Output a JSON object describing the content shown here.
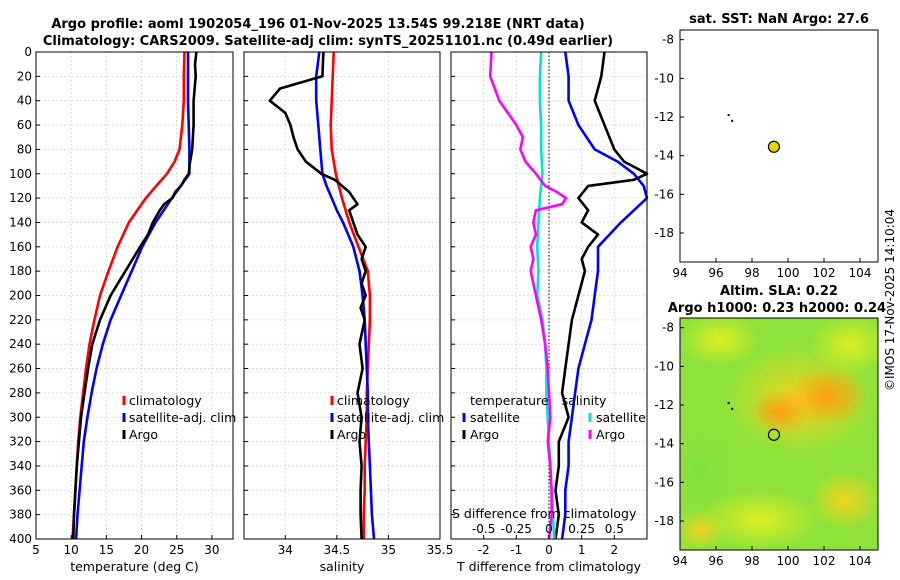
{
  "header": {
    "line1": "Argo profile: aoml 1902054_196 01-Nov-2025 13.54S 99.218E (NRT data)",
    "line2": "Climatology: CARS2009. Satellite-adj clim: synTS_20251101.nc (0.49d earlier)"
  },
  "footer": {
    "stamp": "©IMOS 17-Nov-2025 14:10:04"
  },
  "colors": {
    "climatology": "#ff0000",
    "satellite": "#0000ff",
    "argo": "#000000",
    "t_sat_diff": "#00e0e0",
    "s_argo_diff": "#ff00ff"
  },
  "chart_data": [
    {
      "id": "temperature",
      "type": "line",
      "xlabel": "temperature (deg C)",
      "ylabel": "",
      "xlim": [
        5,
        33
      ],
      "ylim": [
        0,
        400
      ],
      "y_reversed": true,
      "xticks": [
        5,
        10,
        15,
        20,
        25,
        30
      ],
      "yticks": [
        0,
        20,
        40,
        60,
        80,
        100,
        120,
        140,
        160,
        180,
        200,
        220,
        240,
        260,
        280,
        300,
        320,
        340,
        360,
        380,
        400
      ],
      "grid": true,
      "legend": [
        "climatology",
        "satellite-adj. clim",
        "Argo"
      ],
      "series": [
        {
          "name": "climatology",
          "color": "#ff0000",
          "depth": [
            0,
            20,
            40,
            60,
            80,
            90,
            100,
            110,
            120,
            130,
            140,
            160,
            180,
            200,
            220,
            240,
            260,
            280,
            300,
            320,
            340,
            360,
            380,
            400
          ],
          "values": [
            26.1,
            26.0,
            26.0,
            25.8,
            25.4,
            24.7,
            23.6,
            22.1,
            20.6,
            19.4,
            18.2,
            16.6,
            15.3,
            14.1,
            13.3,
            12.6,
            12.1,
            11.7,
            11.3,
            11.0,
            10.8,
            10.6,
            10.4,
            10.2
          ]
        },
        {
          "name": "satellite-adj. clim",
          "color": "#0000ff",
          "depth": [
            0,
            20,
            40,
            60,
            80,
            100,
            110,
            120,
            140,
            160,
            180,
            200,
            220,
            240,
            260,
            280,
            300,
            320,
            340,
            360,
            380,
            400
          ],
          "values": [
            26.6,
            26.6,
            26.6,
            26.7,
            26.8,
            26.8,
            25.6,
            24.3,
            22.0,
            20.1,
            18.6,
            17.1,
            15.6,
            14.5,
            13.6,
            12.9,
            12.3,
            11.8,
            11.5,
            11.2,
            10.9,
            10.7
          ]
        },
        {
          "name": "Argo",
          "color": "#000000",
          "depth": [
            0,
            10,
            20,
            40,
            60,
            80,
            90,
            100,
            105,
            110,
            115,
            120,
            125,
            130,
            140,
            150,
            160,
            180,
            200,
            220,
            240,
            260,
            280,
            300,
            320,
            340,
            360,
            380,
            400
          ],
          "values": [
            27.8,
            27.6,
            27.7,
            27.4,
            27.4,
            27.2,
            26.9,
            26.7,
            26.1,
            25.6,
            24.8,
            24.4,
            23.2,
            22.6,
            21.6,
            20.9,
            19.8,
            17.7,
            15.6,
            14.1,
            13.0,
            12.4,
            11.9,
            11.4,
            11.1,
            10.8,
            10.6,
            10.4,
            10.3
          ]
        }
      ]
    },
    {
      "id": "salinity",
      "type": "line",
      "xlabel": "salinity",
      "xlim": [
        33.6,
        35.5
      ],
      "ylim": [
        0,
        400
      ],
      "y_reversed": true,
      "xticks": [
        34,
        34.5,
        35,
        35.5
      ],
      "grid": true,
      "legend": [
        "climatology",
        "satellite-adj. clim",
        "Argo"
      ],
      "series": [
        {
          "name": "climatology",
          "color": "#ff0000",
          "depth": [
            0,
            20,
            40,
            60,
            80,
            100,
            120,
            140,
            160,
            180,
            200,
            220,
            240,
            260,
            280,
            300,
            320,
            340,
            360,
            380,
            400
          ],
          "values": [
            34.47,
            34.46,
            34.45,
            34.44,
            34.45,
            34.49,
            34.55,
            34.62,
            34.71,
            34.8,
            34.82,
            34.82,
            34.81,
            34.8,
            34.79,
            34.79,
            34.78,
            34.77,
            34.77,
            34.76,
            34.76
          ]
        },
        {
          "name": "satellite-adj. clim",
          "color": "#0000ff",
          "depth": [
            0,
            20,
            40,
            60,
            80,
            100,
            110,
            120,
            130,
            140,
            150,
            160,
            180,
            200,
            220,
            240,
            260,
            280,
            300,
            320,
            340,
            360,
            380,
            400
          ],
          "values": [
            34.33,
            34.3,
            34.3,
            34.32,
            34.34,
            34.36,
            34.4,
            34.45,
            34.5,
            34.56,
            34.61,
            34.66,
            34.72,
            34.75,
            34.77,
            34.78,
            34.79,
            34.8,
            34.8,
            34.81,
            34.82,
            34.83,
            34.84,
            34.86
          ]
        },
        {
          "name": "Argo",
          "color": "#000000",
          "depth": [
            0,
            20,
            30,
            40,
            50,
            60,
            70,
            80,
            90,
            100,
            105,
            110,
            115,
            120,
            125,
            130,
            140,
            150,
            160,
            170,
            180,
            190,
            200,
            210,
            220,
            240,
            260,
            280,
            300,
            320,
            340,
            360,
            380,
            400
          ],
          "values": [
            34.37,
            34.36,
            33.95,
            33.85,
            34.0,
            34.05,
            34.08,
            34.12,
            34.2,
            34.35,
            34.48,
            34.55,
            34.62,
            34.66,
            34.7,
            34.62,
            34.66,
            34.7,
            34.78,
            34.74,
            34.78,
            34.74,
            34.78,
            34.73,
            34.77,
            34.72,
            34.75,
            34.7,
            34.74,
            34.72,
            34.74,
            34.73,
            34.73,
            34.74
          ]
        }
      ]
    },
    {
      "id": "difference",
      "type": "line",
      "xlabel": "T difference from climatology",
      "xlabel2": "S difference from climatology",
      "xlim": [
        -3,
        3
      ],
      "ylim": [
        0,
        400
      ],
      "y_reversed": true,
      "xticks": [
        -2,
        -1,
        0,
        1,
        2
      ],
      "xticks2": [
        -0.5,
        -0.25,
        0,
        0.25,
        0.5
      ],
      "xtick2_labels": [
        "-0.5",
        "-0.25",
        "0",
        "0.25",
        "0.5"
      ],
      "grid": true,
      "legend_t_title": "temperature",
      "legend_s_title": "salinity",
      "legend_t": [
        "satellite",
        "Argo"
      ],
      "legend_s": [
        "satellite",
        "Argo"
      ],
      "series": [
        {
          "name": "T satellite",
          "color": "#0000ff",
          "depth": [
            0,
            20,
            40,
            60,
            80,
            90,
            100,
            110,
            120,
            130,
            140,
            160,
            180,
            200,
            220,
            240,
            260,
            280,
            300,
            320,
            340,
            360,
            380,
            400
          ],
          "values": [
            0.5,
            0.6,
            0.6,
            0.9,
            1.4,
            2.1,
            2.6,
            2.9,
            3.0,
            2.6,
            2.2,
            1.5,
            1.5,
            1.4,
            1.3,
            1.1,
            0.9,
            0.8,
            0.7,
            0.6,
            0.6,
            0.5,
            0.5,
            0.4
          ]
        },
        {
          "name": "T Argo",
          "color": "#000000",
          "depth": [
            0,
            20,
            40,
            60,
            80,
            90,
            100,
            105,
            110,
            120,
            130,
            140,
            150,
            160,
            170,
            180,
            200,
            220,
            240,
            260,
            280,
            300,
            320,
            340,
            360,
            380,
            400
          ],
          "values": [
            1.7,
            1.6,
            1.4,
            1.7,
            2.0,
            2.3,
            3.0,
            2.6,
            1.2,
            0.9,
            1.2,
            1.0,
            1.5,
            1.2,
            1.0,
            1.1,
            0.9,
            0.7,
            0.6,
            0.5,
            0.4,
            0.6,
            0.3,
            0.3,
            0.2,
            0.3,
            0.2
          ]
        },
        {
          "name": "S satellite",
          "color": "#00e0e0",
          "depth": [
            0,
            20,
            40,
            60,
            80,
            100,
            120,
            140,
            160,
            180,
            200,
            220,
            240,
            260,
            280,
            300,
            320,
            340,
            360,
            380,
            400
          ],
          "values": [
            -0.06,
            -0.07,
            -0.07,
            -0.06,
            -0.06,
            -0.05,
            -0.07,
            -0.08,
            -0.09,
            -0.08,
            -0.09,
            -0.05,
            -0.03,
            -0.02,
            -0.02,
            -0.01,
            0.0,
            0.01,
            0.02,
            0.03,
            0.04
          ]
        },
        {
          "name": "S Argo",
          "color": "#ff00ff",
          "depth": [
            0,
            20,
            40,
            60,
            70,
            80,
            90,
            100,
            110,
            115,
            120,
            125,
            130,
            140,
            150,
            160,
            170,
            180,
            200,
            220,
            240,
            260,
            280,
            300,
            320,
            340,
            360,
            380,
            400
          ],
          "values": [
            -0.44,
            -0.45,
            -0.38,
            -0.25,
            -0.2,
            -0.22,
            -0.18,
            -0.1,
            -0.03,
            0.06,
            0.13,
            0.1,
            -0.1,
            -0.12,
            -0.1,
            -0.14,
            -0.12,
            -0.14,
            -0.1,
            -0.06,
            -0.03,
            -0.01,
            0.0,
            0.01,
            -0.01,
            0.01,
            0.02,
            0.02,
            0.0
          ]
        }
      ]
    },
    {
      "id": "sst_map",
      "type": "scatter",
      "title": "sat. SST: NaN Argo: 27.6",
      "xlim": [
        94,
        105
      ],
      "ylim": [
        -19.5,
        -7.5
      ],
      "xticks": [
        94,
        96,
        98,
        100,
        102,
        104
      ],
      "yticks": [
        -8,
        -10,
        -12,
        -14,
        -16,
        -18
      ],
      "argo_position": {
        "lon": 99.218,
        "lat": -13.54
      },
      "track_points": [
        {
          "lon": 96.7,
          "lat": -11.9
        },
        {
          "lon": 96.9,
          "lat": -12.2
        }
      ]
    },
    {
      "id": "sla_map",
      "type": "heatmap",
      "title_line1": "Altim. SLA: 0.22",
      "title_line2": "Argo h1000: 0.23 h2000: 0.24",
      "xlim": [
        94,
        105
      ],
      "ylim": [
        -19.5,
        -7.5
      ],
      "xticks": [
        94,
        96,
        98,
        100,
        102,
        104
      ],
      "yticks": [
        -8,
        -10,
        -12,
        -14,
        -16,
        -18
      ],
      "argo_position": {
        "lon": 99.218,
        "lat": -13.54
      },
      "track_points": [
        {
          "lon": 96.7,
          "lat": -11.9
        },
        {
          "lon": 96.9,
          "lat": -12.2
        }
      ]
    }
  ]
}
